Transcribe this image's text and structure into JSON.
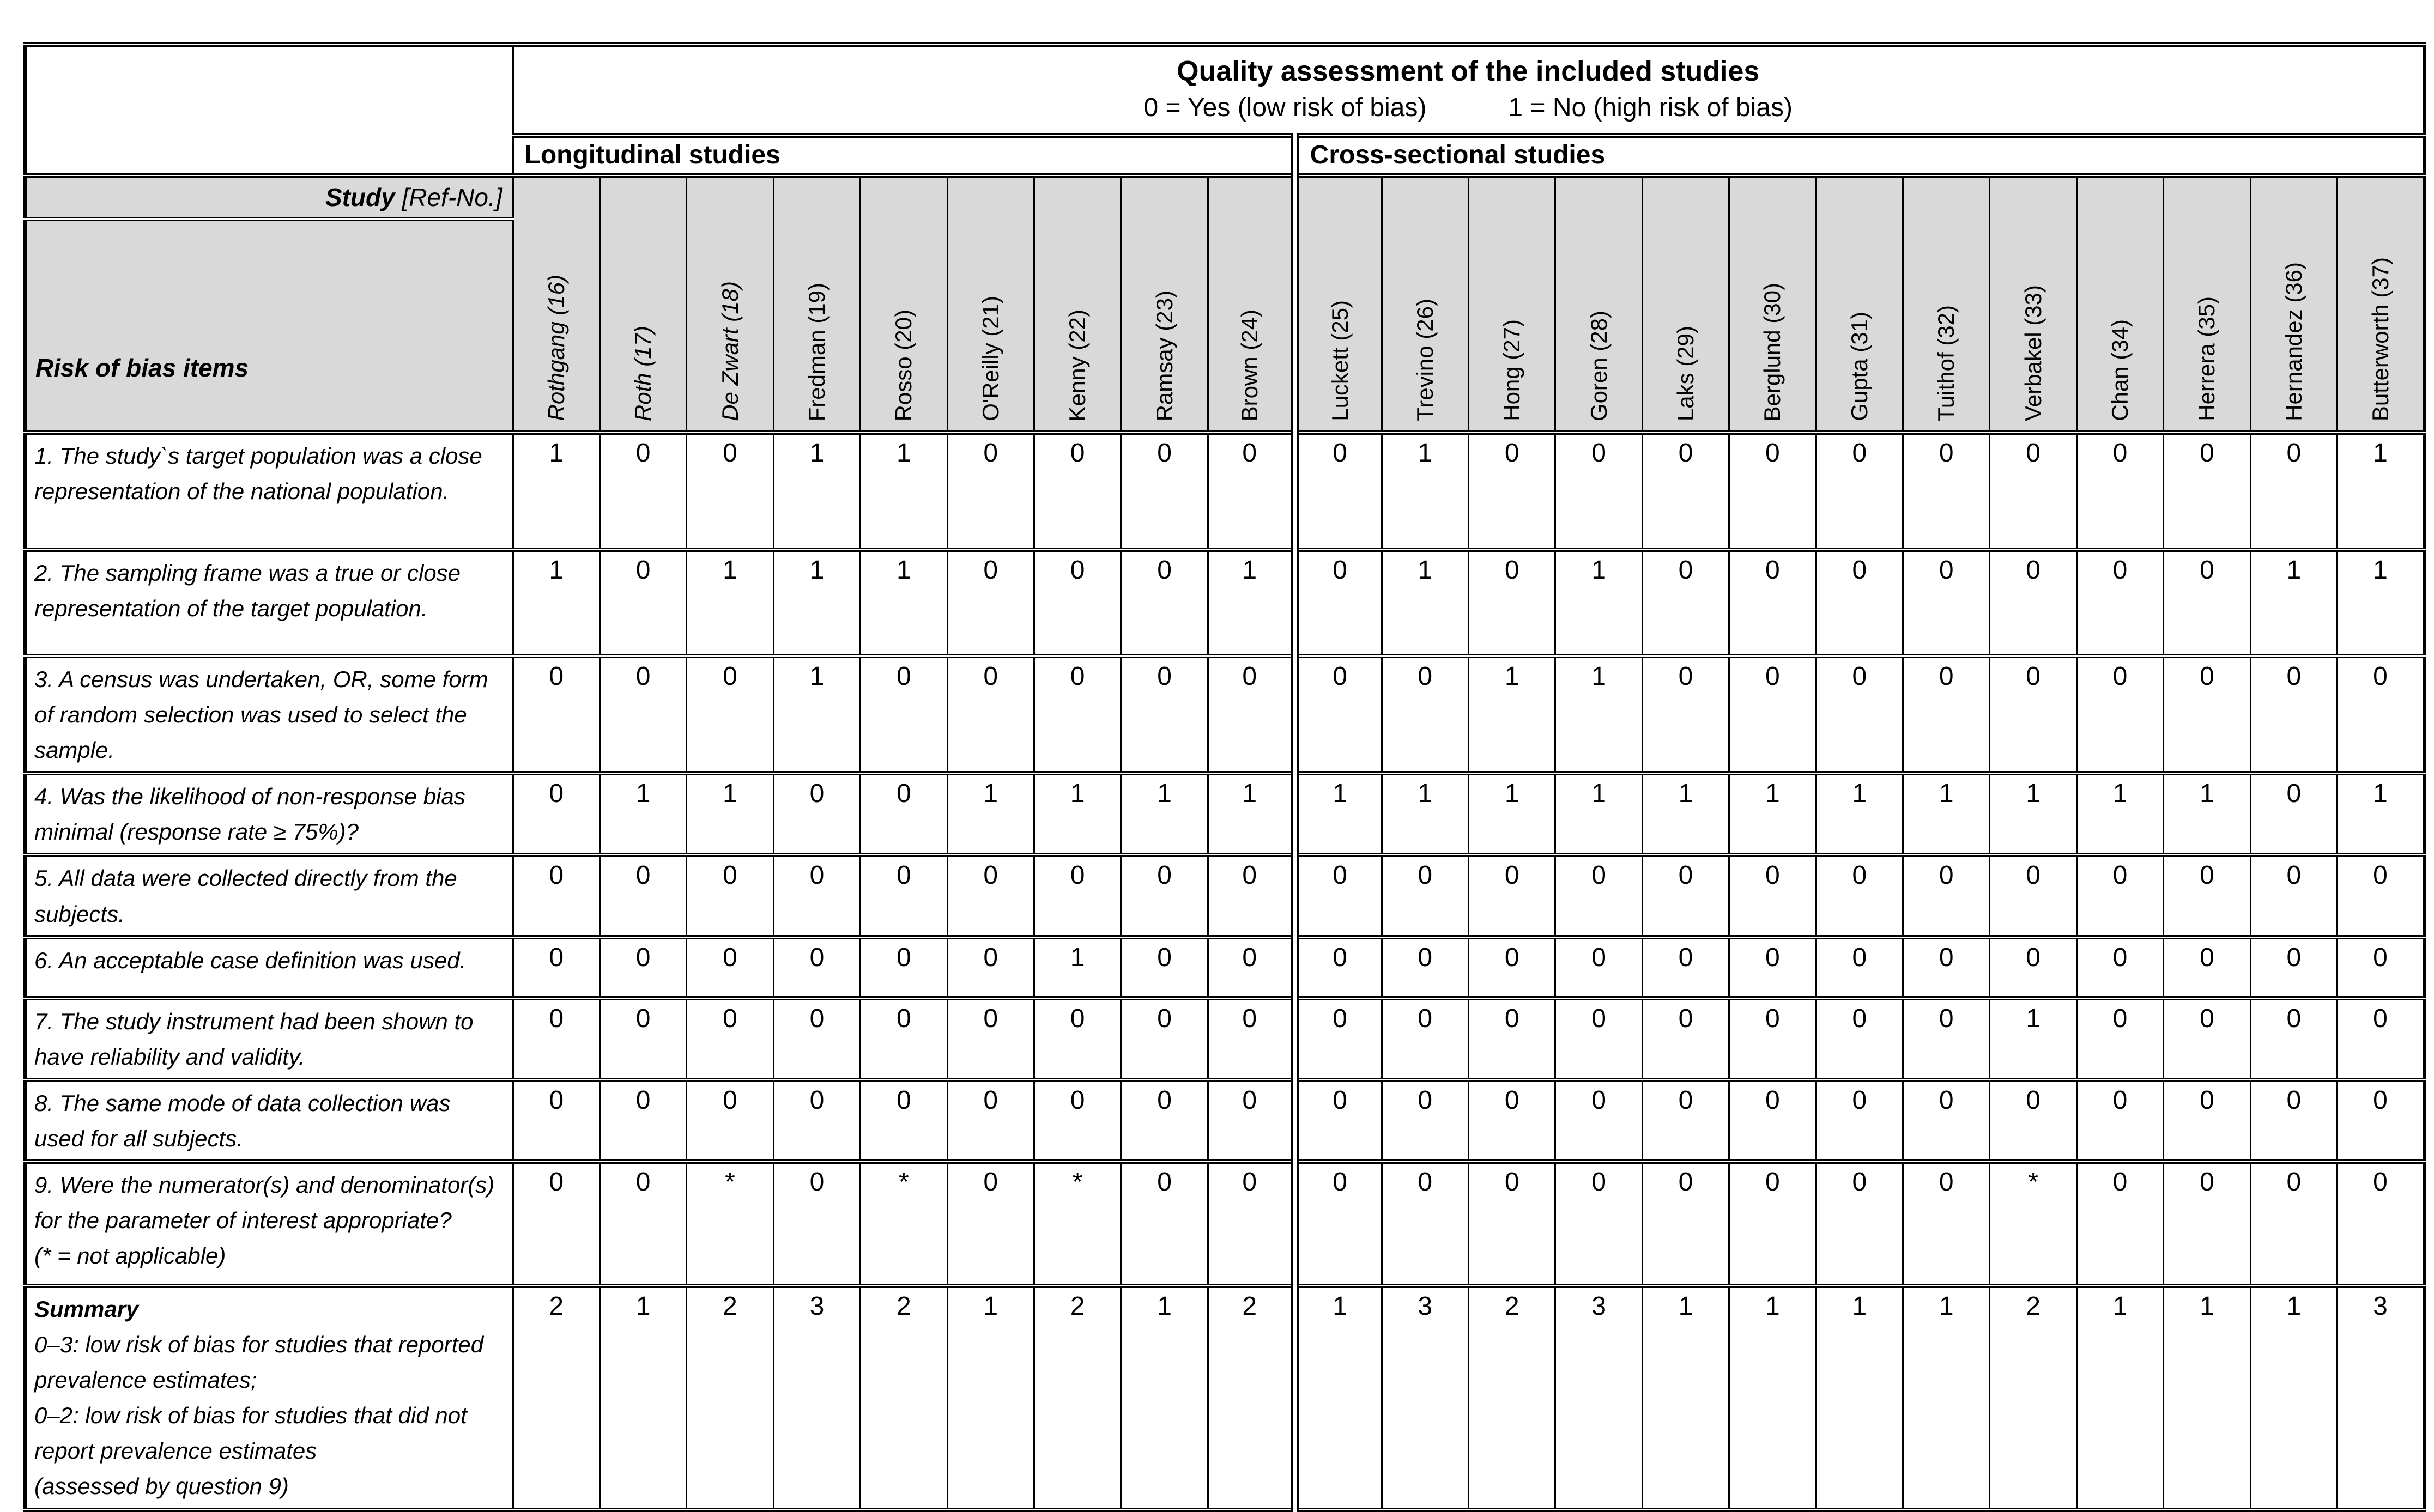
{
  "header": {
    "title": "Quality assessment of the included studies",
    "legend_yes": "0 = Yes (low risk of bias)",
    "legend_no": "1 = No (high risk of bias)",
    "group_longitudinal": "Longitudinal studies",
    "group_cross_sectional": "Cross-sectional studies",
    "study_label": "Study",
    "study_label_suffix": " [Ref-No.]",
    "risk_label": "Risk of bias items"
  },
  "colors": {
    "header_bg": "#d9d9d9",
    "border": "#000000",
    "background": "#ffffff"
  },
  "studies": {
    "longitudinal": [
      {
        "name": "Rothgang (16)",
        "italic": true
      },
      {
        "name": "Roth (17)",
        "italic": true
      },
      {
        "name": "De Zwart (18)",
        "italic": true
      },
      {
        "name": "Fredman (19)",
        "italic": false
      },
      {
        "name": "Rosso (20)",
        "italic": false
      },
      {
        "name": "O'Reilly (21)",
        "italic": false
      },
      {
        "name": "Kenny (22)",
        "italic": false
      },
      {
        "name": "Ramsay (23)",
        "italic": false
      },
      {
        "name": "Brown (24)",
        "italic": false
      }
    ],
    "cross_sectional": [
      {
        "name": "Luckett (25)",
        "italic": false
      },
      {
        "name": "Trevino (26)",
        "italic": false
      },
      {
        "name": "Hong (27)",
        "italic": false
      },
      {
        "name": "Goren (28)",
        "italic": false
      },
      {
        "name": "Laks (29)",
        "italic": false
      },
      {
        "name": "Berglund (30)",
        "italic": false
      },
      {
        "name": "Gupta (31)",
        "italic": false
      },
      {
        "name": "Tuithof (32)",
        "italic": false
      },
      {
        "name": "Verbakel (33)",
        "italic": false
      },
      {
        "name": "Chan (34)",
        "italic": false
      },
      {
        "name": "Herrera (35)",
        "italic": false
      },
      {
        "name": "Hernandez (36)",
        "italic": false
      },
      {
        "name": "Butterworth (37)",
        "italic": false
      }
    ]
  },
  "rows": [
    {
      "label": "1. The study`s target population was a close representation of the national population.",
      "longitudinal": [
        "1",
        "0",
        "0",
        "1",
        "1",
        "0",
        "0",
        "0",
        "0"
      ],
      "cross_sectional": [
        "0",
        "1",
        "0",
        "0",
        "0",
        "0",
        "0",
        "0",
        "0",
        "0",
        "0",
        "0",
        "1"
      ]
    },
    {
      "label": "2. The sampling frame was a true or close representation of the target population.",
      "longitudinal": [
        "1",
        "0",
        "1",
        "1",
        "1",
        "0",
        "0",
        "0",
        "1"
      ],
      "cross_sectional": [
        "0",
        "1",
        "0",
        "1",
        "0",
        "0",
        "0",
        "0",
        "0",
        "0",
        "0",
        "1",
        "1"
      ]
    },
    {
      "label": "3. A census was undertaken, OR, some form of random selection was used to select the sample.",
      "longitudinal": [
        "0",
        "0",
        "0",
        "1",
        "0",
        "0",
        "0",
        "0",
        "0"
      ],
      "cross_sectional": [
        "0",
        "0",
        "1",
        "1",
        "0",
        "0",
        "0",
        "0",
        "0",
        "0",
        "0",
        "0",
        "0"
      ]
    },
    {
      "label": "4. Was the likelihood of non-response bias minimal (response rate ≥ 75%)?",
      "longitudinal": [
        "0",
        "1",
        "1",
        "0",
        "0",
        "1",
        "1",
        "1",
        "1"
      ],
      "cross_sectional": [
        "1",
        "1",
        "1",
        "1",
        "1",
        "1",
        "1",
        "1",
        "1",
        "1",
        "1",
        "0",
        "1"
      ]
    },
    {
      "label": "5. All data were collected directly from the subjects.",
      "longitudinal": [
        "0",
        "0",
        "0",
        "0",
        "0",
        "0",
        "0",
        "0",
        "0"
      ],
      "cross_sectional": [
        "0",
        "0",
        "0",
        "0",
        "0",
        "0",
        "0",
        "0",
        "0",
        "0",
        "0",
        "0",
        "0"
      ]
    },
    {
      "label": "6. An acceptable case definition was used.",
      "longitudinal": [
        "0",
        "0",
        "0",
        "0",
        "0",
        "0",
        "1",
        "0",
        "0"
      ],
      "cross_sectional": [
        "0",
        "0",
        "0",
        "0",
        "0",
        "0",
        "0",
        "0",
        "0",
        "0",
        "0",
        "0",
        "0"
      ]
    },
    {
      "label": "7. The study instrument had been shown to have reliability and validity.",
      "longitudinal": [
        "0",
        "0",
        "0",
        "0",
        "0",
        "0",
        "0",
        "0",
        "0"
      ],
      "cross_sectional": [
        "0",
        "0",
        "0",
        "0",
        "0",
        "0",
        "0",
        "0",
        "1",
        "0",
        "0",
        "0",
        "0"
      ]
    },
    {
      "label": "8. The same mode of data collection was used for all subjects.",
      "longitudinal": [
        "0",
        "0",
        "0",
        "0",
        "0",
        "0",
        "0",
        "0",
        "0"
      ],
      "cross_sectional": [
        "0",
        "0",
        "0",
        "0",
        "0",
        "0",
        "0",
        "0",
        "0",
        "0",
        "0",
        "0",
        "0"
      ]
    },
    {
      "label": "9. Were the numerator(s) and denominator(s) for the parameter of interest appropriate?",
      "note": "(* = not applicable)",
      "longitudinal": [
        "0",
        "0",
        "*",
        "0",
        "*",
        "0",
        "*",
        "0",
        "0"
      ],
      "cross_sectional": [
        "0",
        "0",
        "0",
        "0",
        "0",
        "0",
        "0",
        "0",
        "*",
        "0",
        "0",
        "0",
        "0"
      ]
    },
    {
      "bold_label": "Summary",
      "lines": [
        "0–3: low risk of bias for studies that reported prevalence estimates;",
        "0–2: low risk of bias for studies that did not report prevalence estimates",
        "(assessed by question 9)"
      ],
      "longitudinal": [
        "2",
        "1",
        "2",
        "3",
        "2",
        "1",
        "2",
        "1",
        "2"
      ],
      "cross_sectional": [
        "1",
        "3",
        "2",
        "3",
        "1",
        "1",
        "1",
        "1",
        "2",
        "1",
        "1",
        "1",
        "3"
      ]
    }
  ]
}
